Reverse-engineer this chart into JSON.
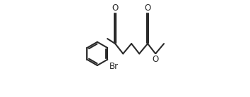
{
  "bg_color": "#ffffff",
  "line_color": "#2a2a2a",
  "line_width": 1.5,
  "figsize": [
    3.54,
    1.38
  ],
  "dpi": 100,
  "font_size": 8.5,
  "label_Br": "Br",
  "label_O": "O"
}
